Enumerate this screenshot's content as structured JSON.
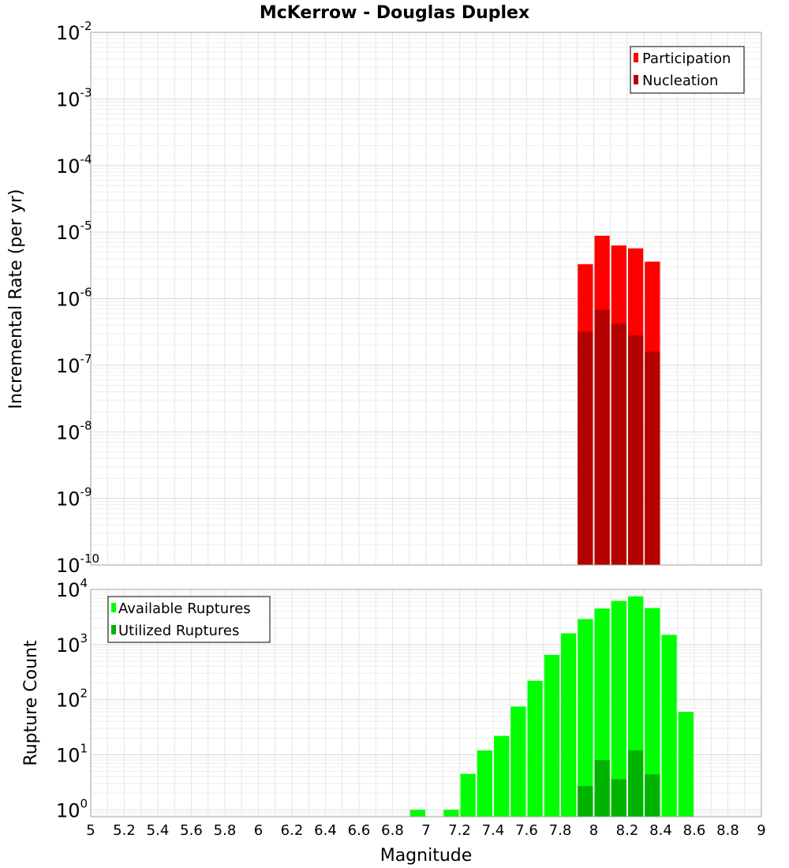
{
  "chart_data": [
    {
      "type": "bar",
      "title": "McKerrow - Douglas Duplex",
      "xlabel": "",
      "ylabel": "Incremental Rate (per yr)",
      "xlim": [
        5,
        9
      ],
      "ylim": [
        1e-10,
        0.01
      ],
      "yscale": "log",
      "y_tick_exponents": [
        -10,
        -9,
        -8,
        -7,
        -6,
        -5,
        -4,
        -3,
        -2
      ],
      "legend": {
        "placement": "top-right",
        "entries": [
          "Participation",
          "Nucleation"
        ]
      },
      "series": [
        {
          "name": "Participation",
          "color": "#ff0000",
          "x": [
            7.95,
            8.05,
            8.15,
            8.25,
            8.35
          ],
          "values": [
            3.3e-06,
            8.8e-06,
            6.3e-06,
            5.7e-06,
            3.6e-06
          ]
        },
        {
          "name": "Nucleation",
          "color": "#b30000",
          "x": [
            7.95,
            8.05,
            8.15,
            8.25,
            8.35
          ],
          "values": [
            3.2e-07,
            6.8e-07,
            4.2e-07,
            2.8e-07,
            1.6e-07
          ]
        }
      ]
    },
    {
      "type": "bar",
      "title": "",
      "xlabel": "Magnitude",
      "ylabel": "Rupture Count",
      "xlim": [
        5,
        9
      ],
      "ylim": [
        0.75,
        10000
      ],
      "yscale": "log",
      "y_tick_exponents": [
        0,
        1,
        2,
        3,
        4
      ],
      "x_ticks": [
        "5",
        "5.2",
        "5.4",
        "5.6",
        "5.8",
        "6",
        "6.2",
        "6.4",
        "6.6",
        "6.8",
        "7",
        "7.2",
        "7.4",
        "7.6",
        "7.8",
        "8",
        "8.2",
        "8.4",
        "8.6",
        "8.8",
        "9"
      ],
      "legend": {
        "placement": "top-left",
        "entries": [
          "Available Ruptures",
          "Utilized Ruptures"
        ]
      },
      "series": [
        {
          "name": "Available Ruptures",
          "color": "#00ff00",
          "x": [
            6.95,
            7.15,
            7.25,
            7.35,
            7.45,
            7.55,
            7.65,
            7.75,
            7.85,
            7.95,
            8.05,
            8.15,
            8.25,
            8.35,
            8.45,
            8.55
          ],
          "values": [
            1,
            1,
            4.5,
            12,
            22,
            75,
            220,
            650,
            1600,
            2900,
            4500,
            6200,
            7500,
            4600,
            1500,
            60
          ]
        },
        {
          "name": "Utilized Ruptures",
          "color": "#00b300",
          "x": [
            7.95,
            8.05,
            8.15,
            8.25,
            8.35
          ],
          "values": [
            2.7,
            8,
            3.6,
            12,
            4.4
          ]
        }
      ]
    }
  ]
}
